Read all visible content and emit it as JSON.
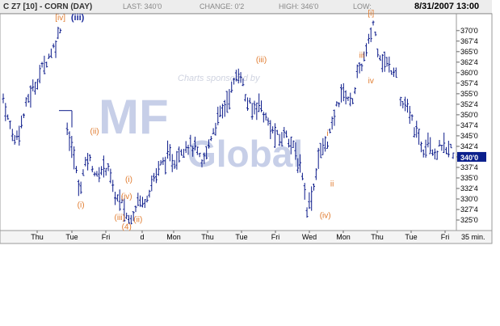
{
  "header": {
    "symbol": "C Z7 [10] - CORN (DAY)",
    "last": "LAST: 340'0",
    "change": "CHANGE: 0'2",
    "high": "HIGH: 346'0",
    "low": "LOW:",
    "datetime": "8/31/2007 13:00"
  },
  "watermark": {
    "sponsor_text": "Charts sponsored by",
    "logo_text": "MF Global"
  },
  "chart_data": {
    "type": "bar",
    "subtype": "ohlc-intraday",
    "interval": "35 min.",
    "ylim": [
      322.5,
      374
    ],
    "y_ticks": [
      "325'0",
      "327'4",
      "330'0",
      "332'4",
      "335'0",
      "337'4",
      "340'0",
      "342'4",
      "345'0",
      "347'4",
      "350'0",
      "352'4",
      "355'0",
      "357'4",
      "360'0",
      "362'4",
      "365'0",
      "367'4",
      "370'0"
    ],
    "x_ticks": [
      "Thu",
      "Tue",
      "Fri",
      "d",
      "Mon",
      "Thu",
      "Tue",
      "Fri",
      "Wed",
      "Mon",
      "Thu",
      "Tue",
      "Fri"
    ],
    "last_price_label": "340'0",
    "last_price": 340,
    "colors": {
      "bars": "#0b1a8a",
      "waves": "#e07b2e",
      "blue_label": "#1a2a9a",
      "last_box": "#0a1f8c"
    },
    "price_path": [
      [
        0,
        354
      ],
      [
        2,
        349
      ],
      [
        5,
        344
      ],
      [
        8,
        348
      ],
      [
        11,
        354
      ],
      [
        14,
        357
      ],
      [
        17,
        361
      ],
      [
        20,
        364
      ],
      [
        23,
        367
      ],
      [
        25,
        371
      ],
      [
        26,
        351
      ],
      [
        27,
        348
      ],
      [
        28,
        347
      ],
      [
        30,
        342
      ],
      [
        32,
        337
      ],
      [
        33,
        332
      ],
      [
        35,
        336
      ],
      [
        37,
        340
      ],
      [
        39,
        338
      ],
      [
        41,
        335
      ],
      [
        43,
        337
      ],
      [
        46,
        338
      ],
      [
        48,
        332
      ],
      [
        50,
        330
      ],
      [
        52,
        329
      ],
      [
        54,
        326
      ],
      [
        55,
        325
      ],
      [
        57,
        327
      ],
      [
        59,
        330
      ],
      [
        61,
        329
      ],
      [
        63,
        331
      ],
      [
        66,
        335
      ],
      [
        69,
        338
      ],
      [
        72,
        340
      ],
      [
        75,
        339
      ],
      [
        78,
        342
      ],
      [
        81,
        343
      ],
      [
        84,
        342
      ],
      [
        87,
        338
      ],
      [
        89,
        341
      ],
      [
        91,
        345
      ],
      [
        94,
        349
      ],
      [
        97,
        352
      ],
      [
        100,
        356
      ],
      [
        102,
        359
      ],
      [
        104,
        360
      ],
      [
        106,
        354
      ],
      [
        109,
        351
      ],
      [
        112,
        353
      ],
      [
        115,
        349
      ],
      [
        118,
        346
      ],
      [
        121,
        344
      ],
      [
        124,
        346
      ],
      [
        127,
        342
      ],
      [
        129,
        339
      ],
      [
        131,
        336
      ],
      [
        133,
        328
      ],
      [
        134,
        329
      ],
      [
        136,
        333
      ],
      [
        138,
        340
      ],
      [
        140,
        342
      ],
      [
        142,
        344
      ],
      [
        144,
        347
      ],
      [
        146,
        352
      ],
      [
        148,
        355
      ],
      [
        150,
        355
      ],
      [
        152,
        353
      ],
      [
        153,
        354
      ],
      [
        155,
        359
      ],
      [
        157,
        362
      ],
      [
        159,
        365
      ],
      [
        161,
        369
      ],
      [
        162,
        372
      ],
      [
        164,
        366
      ],
      [
        166,
        363
      ],
      [
        168,
        362
      ],
      [
        170,
        361
      ],
      [
        172,
        361
      ],
      [
        174,
        353
      ],
      [
        176,
        352
      ],
      [
        178,
        350
      ],
      [
        180,
        347
      ],
      [
        182,
        344
      ],
      [
        184,
        342
      ],
      [
        186,
        345
      ],
      [
        188,
        342
      ],
      [
        190,
        341
      ],
      [
        192,
        343
      ],
      [
        194,
        341
      ],
      [
        196,
        342
      ],
      [
        197,
        340
      ]
    ],
    "wave_labels": [
      {
        "label": "[iv]",
        "x": 25,
        "y": 372.5,
        "color": "orange"
      },
      {
        "label": "(iii)",
        "x": 25.5,
        "y": 372.5,
        "color": "blue"
      },
      {
        "label": "(ii)",
        "x": 40,
        "y": 345.5,
        "color": "orange"
      },
      {
        "label": "(i)",
        "x": 34,
        "y": 328,
        "color": "orange"
      },
      {
        "label": "(i)",
        "x": 55,
        "y": 334,
        "color": "orange"
      },
      {
        "label": "(iv)",
        "x": 54,
        "y": 330,
        "color": "orange"
      },
      {
        "label": "(iii)",
        "x": 51,
        "y": 325,
        "color": "orange"
      },
      {
        "label": "(ii)",
        "x": 59,
        "y": 324.5,
        "color": "orange"
      },
      {
        "label": "(4)",
        "x": 54,
        "y": 322.8,
        "color": "orange"
      },
      {
        "label": "(iii)",
        "x": 113,
        "y": 362.5,
        "color": "orange"
      },
      {
        "label": "i",
        "x": 142,
        "y": 345,
        "color": "orange"
      },
      {
        "label": "ii",
        "x": 144,
        "y": 333,
        "color": "orange"
      },
      {
        "label": "(iv)",
        "x": 141,
        "y": 325.5,
        "color": "orange"
      },
      {
        "label": "[i]",
        "x": 161,
        "y": 373.5,
        "color": "orange"
      },
      {
        "label": "iii",
        "x": 157,
        "y": 363.5,
        "color": "orange"
      },
      {
        "label": "iv",
        "x": 161,
        "y": 357.5,
        "color": "orange"
      }
    ]
  }
}
